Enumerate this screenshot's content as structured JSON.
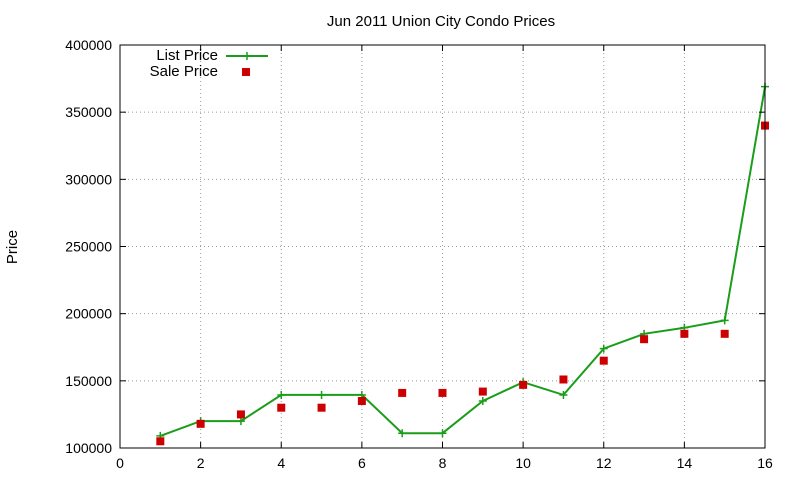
{
  "chart_data": {
    "type": "line",
    "title": "Jun 2011 Union City Condo Prices",
    "xlabel": "",
    "ylabel": "Price",
    "xlim": [
      0,
      16
    ],
    "ylim": [
      100000,
      400000
    ],
    "xticks": [
      0,
      2,
      4,
      6,
      8,
      10,
      12,
      14,
      16
    ],
    "yticks": [
      100000,
      150000,
      200000,
      250000,
      300000,
      350000,
      400000
    ],
    "grid": true,
    "legend_position": "top-left",
    "series": [
      {
        "name": "List Price",
        "style": "line-with-plus-markers",
        "color": "#1a9e1a",
        "x": [
          1,
          2,
          3,
          4,
          5,
          6,
          7,
          8,
          9,
          10,
          11,
          12,
          13,
          14,
          15,
          16
        ],
        "y": [
          109000,
          120000,
          120000,
          139500,
          139500,
          139500,
          111000,
          111000,
          135000,
          149000,
          139500,
          174000,
          185000,
          189500,
          195000,
          369000
        ]
      },
      {
        "name": "Sale Price",
        "style": "square-markers",
        "color": "#cc0000",
        "x": [
          1,
          2,
          3,
          4,
          5,
          6,
          7,
          8,
          9,
          10,
          11,
          12,
          13,
          14,
          15,
          16
        ],
        "y": [
          105000,
          118000,
          125000,
          130000,
          130000,
          135000,
          141000,
          141000,
          142000,
          147000,
          151000,
          165000,
          181000,
          185000,
          185000,
          340000
        ]
      }
    ]
  }
}
